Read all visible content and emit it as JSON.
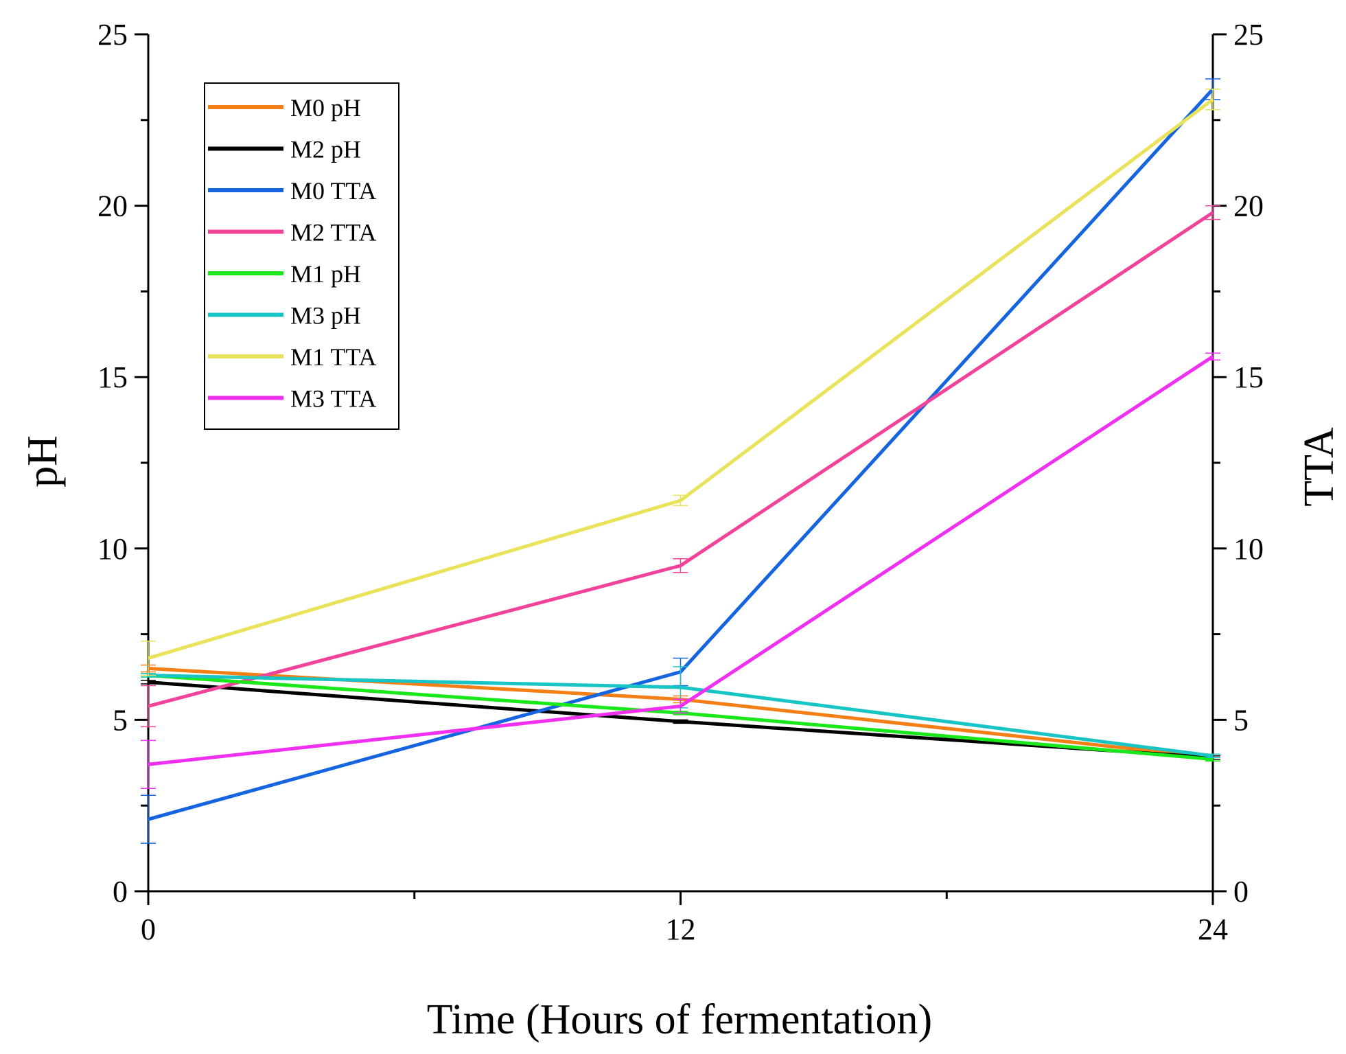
{
  "chart_data": {
    "type": "line",
    "title": "",
    "xlabel": "Time (Hours of fermentation)",
    "ylabel": "pH",
    "y2label": "TTA",
    "x": [
      0,
      12,
      24
    ],
    "xticks": [
      "0",
      "12",
      "24"
    ],
    "ylim": [
      0,
      25
    ],
    "y2lim": [
      0,
      25
    ],
    "yticks": [
      "0",
      "5",
      "10",
      "15",
      "20",
      "25"
    ],
    "y2ticks": [
      "0",
      "5",
      "10",
      "15",
      "20",
      "25"
    ],
    "legend_position": "top-left",
    "series": [
      {
        "name": "M0 pH",
        "axis": "left",
        "color": "#f57f17",
        "values": [
          6.5,
          5.6,
          3.9
        ],
        "errors": [
          0.1,
          0.1,
          0.1
        ]
      },
      {
        "name": "M2 pH",
        "axis": "left",
        "color": "#000000",
        "values": [
          6.1,
          4.95,
          3.9
        ],
        "errors": [
          0.05,
          0.05,
          0.05
        ]
      },
      {
        "name": "M0 TTA",
        "axis": "right",
        "color": "#1565e0",
        "values": [
          2.1,
          6.4,
          23.4
        ],
        "errors": [
          0.7,
          0.4,
          0.3
        ]
      },
      {
        "name": "M2 TTA",
        "axis": "right",
        "color": "#f2439a",
        "values": [
          5.4,
          9.5,
          19.8
        ],
        "errors": [
          0.6,
          0.2,
          0.2
        ]
      },
      {
        "name": "M1 pH",
        "axis": "left",
        "color": "#1ae81a",
        "values": [
          6.3,
          5.2,
          3.85
        ],
        "errors": [
          0.05,
          0.05,
          0.05
        ]
      },
      {
        "name": "M3 pH",
        "axis": "left",
        "color": "#19c4c4",
        "values": [
          6.3,
          5.95,
          3.95
        ],
        "errors": [
          0.05,
          0.6,
          0.05
        ]
      },
      {
        "name": "M1 TTA",
        "axis": "right",
        "color": "#e8e35a",
        "values": [
          6.8,
          11.4,
          23.1
        ],
        "errors": [
          0.5,
          0.15,
          0.3
        ]
      },
      {
        "name": "M3 TTA",
        "axis": "right",
        "color": "#f030f0",
        "values": [
          3.7,
          5.4,
          15.6
        ],
        "errors": [
          0.7,
          0.2,
          0.1
        ]
      }
    ]
  }
}
